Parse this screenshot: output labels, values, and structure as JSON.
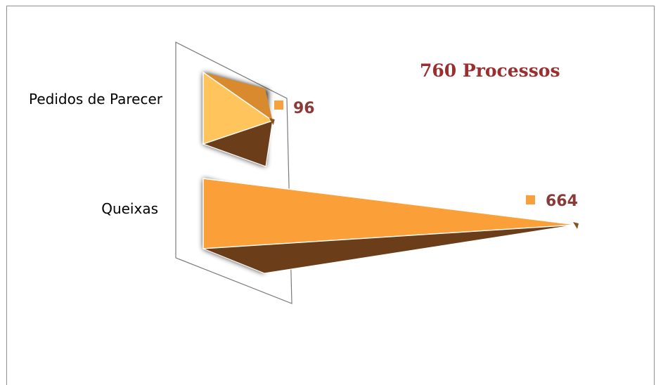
{
  "chart_data": {
    "type": "bar",
    "orientation": "horizontal",
    "style": "3d-pyramid",
    "title": "760 Processos",
    "categories": [
      "Pedidos de Parecer",
      "Queixas"
    ],
    "values": [
      96,
      664
    ],
    "xlim": [
      0,
      700
    ],
    "grid": false,
    "legend": "none",
    "colors": {
      "light_face": "#ffc55c",
      "main_face": "#fba038",
      "dark_face": "#6b3e19",
      "shadow": "#000000",
      "marker": "#f7a13d",
      "value_text": "#8b3a3a",
      "title_text": "#9b2f2f"
    }
  }
}
